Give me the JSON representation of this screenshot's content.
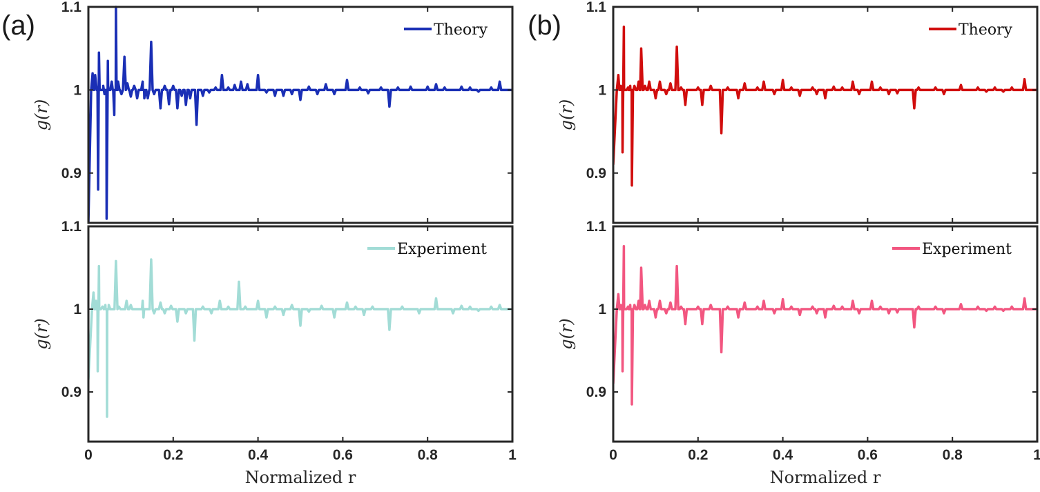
{
  "panel_labels": [
    "(a)",
    "(b)"
  ],
  "chart_data": [
    {
      "type": "line",
      "panel": "(a)",
      "position": "top",
      "legend": "Theory",
      "color": "#1a2fb5",
      "xlim": [
        0,
        1
      ],
      "ylim": [
        0.84,
        1.1
      ],
      "yticks": [
        0.9,
        1.0,
        1.1
      ],
      "ytick_labels": [
        "0.9",
        "1",
        "1.1"
      ],
      "xticks": [
        0,
        0.2,
        0.4,
        0.6,
        0.8,
        1.0
      ],
      "ylabel": "g(r)",
      "xlabel": "",
      "start_value": 0.84,
      "spikes": [
        [
          0.01,
          1.02
        ],
        [
          0.016,
          1.018
        ],
        [
          0.023,
          0.88
        ],
        [
          0.025,
          1.045
        ],
        [
          0.035,
          1.005
        ],
        [
          0.038,
          0.995
        ],
        [
          0.043,
          0.845
        ],
        [
          0.046,
          1.035
        ],
        [
          0.055,
          1.01
        ],
        [
          0.061,
          0.97
        ],
        [
          0.065,
          1.1
        ],
        [
          0.07,
          1.01
        ],
        [
          0.078,
          0.995
        ],
        [
          0.085,
          1.04
        ],
        [
          0.092,
          1.008
        ],
        [
          0.1,
          0.992
        ],
        [
          0.108,
          1.005
        ],
        [
          0.115,
          0.99
        ],
        [
          0.128,
          1.01
        ],
        [
          0.132,
          0.99
        ],
        [
          0.14,
          0.99
        ],
        [
          0.148,
          1.058
        ],
        [
          0.155,
          0.995
        ],
        [
          0.17,
          0.978
        ],
        [
          0.18,
          1.005
        ],
        [
          0.19,
          0.983
        ],
        [
          0.2,
          1.005
        ],
        [
          0.21,
          0.978
        ],
        [
          0.22,
          0.993
        ],
        [
          0.23,
          0.982
        ],
        [
          0.24,
          0.99
        ],
        [
          0.255,
          0.958
        ],
        [
          0.27,
          0.993
        ],
        [
          0.285,
          0.997
        ],
        [
          0.3,
          1.003
        ],
        [
          0.315,
          1.018
        ],
        [
          0.33,
          1.003
        ],
        [
          0.345,
          1.006
        ],
        [
          0.36,
          1.01
        ],
        [
          0.375,
          1.007
        ],
        [
          0.4,
          1.018
        ],
        [
          0.42,
          0.997
        ],
        [
          0.44,
          0.993
        ],
        [
          0.46,
          0.993
        ],
        [
          0.48,
          0.995
        ],
        [
          0.5,
          0.988
        ],
        [
          0.52,
          1.004
        ],
        [
          0.54,
          0.995
        ],
        [
          0.56,
          1.007
        ],
        [
          0.58,
          0.995
        ],
        [
          0.61,
          1.012
        ],
        [
          0.64,
          1.003
        ],
        [
          0.66,
          0.996
        ],
        [
          0.69,
          1.003
        ],
        [
          0.71,
          0.98
        ],
        [
          0.73,
          1.003
        ],
        [
          0.76,
          1.004
        ],
        [
          0.8,
          1.004
        ],
        [
          0.82,
          1.007
        ],
        [
          0.84,
          1.003
        ],
        [
          0.88,
          1.004
        ],
        [
          0.9,
          1.003
        ],
        [
          0.92,
          0.998
        ],
        [
          0.95,
          1.003
        ],
        [
          0.97,
          1.01
        ]
      ]
    },
    {
      "type": "line",
      "panel": "(a)",
      "position": "bottom",
      "legend": "Experiment",
      "color": "#a2dcd6",
      "xlim": [
        0,
        1
      ],
      "ylim": [
        0.84,
        1.1
      ],
      "yticks": [
        0.9,
        1.0,
        1.1
      ],
      "ytick_labels": [
        "0.9",
        "1",
        "1.1"
      ],
      "xticks": [
        0,
        0.2,
        0.4,
        0.6,
        0.8,
        1.0
      ],
      "xtick_labels": [
        "0",
        "0.2",
        "0.4",
        "0.6",
        "0.8",
        "1"
      ],
      "ylabel": "g(r)",
      "xlabel": "Normalized r",
      "start_value": 0.915,
      "spikes": [
        [
          0.012,
          1.02
        ],
        [
          0.018,
          1.01
        ],
        [
          0.022,
          0.925
        ],
        [
          0.025,
          1.052
        ],
        [
          0.033,
          1.003
        ],
        [
          0.04,
          1.005
        ],
        [
          0.044,
          0.87
        ],
        [
          0.048,
          1.005
        ],
        [
          0.058,
          1.0
        ],
        [
          0.065,
          1.058
        ],
        [
          0.072,
          1.003
        ],
        [
          0.09,
          1.01
        ],
        [
          0.1,
          1.005
        ],
        [
          0.11,
          1.0
        ],
        [
          0.128,
          1.01
        ],
        [
          0.13,
          0.99
        ],
        [
          0.148,
          1.06
        ],
        [
          0.155,
          0.995
        ],
        [
          0.17,
          1.008
        ],
        [
          0.18,
          0.995
        ],
        [
          0.195,
          1.004
        ],
        [
          0.21,
          0.985
        ],
        [
          0.23,
          0.995
        ],
        [
          0.25,
          0.962
        ],
        [
          0.27,
          1.003
        ],
        [
          0.29,
          0.995
        ],
        [
          0.31,
          1.01
        ],
        [
          0.33,
          1.003
        ],
        [
          0.355,
          1.033
        ],
        [
          0.37,
          1.003
        ],
        [
          0.4,
          1.01
        ],
        [
          0.42,
          0.99
        ],
        [
          0.44,
          1.003
        ],
        [
          0.46,
          0.993
        ],
        [
          0.48,
          1.005
        ],
        [
          0.5,
          0.98
        ],
        [
          0.52,
          0.997
        ],
        [
          0.55,
          1.004
        ],
        [
          0.58,
          0.99
        ],
        [
          0.61,
          1.008
        ],
        [
          0.63,
          1.003
        ],
        [
          0.65,
          0.993
        ],
        [
          0.67,
          1.003
        ],
        [
          0.71,
          0.975
        ],
        [
          0.74,
          1.003
        ],
        [
          0.78,
          0.995
        ],
        [
          0.82,
          1.013
        ],
        [
          0.86,
          0.995
        ],
        [
          0.88,
          1.004
        ],
        [
          0.9,
          1.003
        ],
        [
          0.92,
          0.998
        ],
        [
          0.95,
          1.003
        ],
        [
          0.97,
          1.005
        ]
      ]
    },
    {
      "type": "line",
      "panel": "(b)",
      "position": "top",
      "legend": "Theory",
      "color": "#d10d0d",
      "xlim": [
        0,
        1
      ],
      "ylim": [
        0.84,
        1.1
      ],
      "yticks": [
        0.9,
        1.0,
        1.1
      ],
      "ytick_labels": [
        "0.9",
        "1",
        "1.1"
      ],
      "xticks": [
        0,
        0.2,
        0.4,
        0.6,
        0.8,
        1.0
      ],
      "ylabel": "g(r)",
      "xlabel": "",
      "start_value": 0.91,
      "spikes": [
        [
          0.012,
          1.018
        ],
        [
          0.018,
          1.005
        ],
        [
          0.022,
          0.925
        ],
        [
          0.025,
          1.076
        ],
        [
          0.035,
          1.003
        ],
        [
          0.04,
          1.005
        ],
        [
          0.044,
          0.885
        ],
        [
          0.05,
          1.005
        ],
        [
          0.06,
          1.01
        ],
        [
          0.066,
          1.05
        ],
        [
          0.075,
          1.005
        ],
        [
          0.085,
          1.01
        ],
        [
          0.1,
          0.99
        ],
        [
          0.11,
          1.01
        ],
        [
          0.125,
          0.995
        ],
        [
          0.135,
          1.008
        ],
        [
          0.15,
          1.052
        ],
        [
          0.16,
          1.003
        ],
        [
          0.17,
          0.982
        ],
        [
          0.2,
          1.003
        ],
        [
          0.21,
          0.982
        ],
        [
          0.23,
          1.005
        ],
        [
          0.255,
          0.948
        ],
        [
          0.27,
          1.003
        ],
        [
          0.295,
          0.99
        ],
        [
          0.31,
          1.008
        ],
        [
          0.34,
          1.003
        ],
        [
          0.355,
          1.01
        ],
        [
          0.38,
          0.995
        ],
        [
          0.4,
          1.012
        ],
        [
          0.42,
          1.003
        ],
        [
          0.44,
          0.993
        ],
        [
          0.47,
          1.003
        ],
        [
          0.48,
          0.995
        ],
        [
          0.5,
          0.99
        ],
        [
          0.52,
          1.004
        ],
        [
          0.54,
          1.003
        ],
        [
          0.565,
          1.01
        ],
        [
          0.58,
          0.995
        ],
        [
          0.61,
          1.01
        ],
        [
          0.63,
          1.003
        ],
        [
          0.65,
          0.995
        ],
        [
          0.67,
          0.996
        ],
        [
          0.71,
          0.978
        ],
        [
          0.72,
          1.003
        ],
        [
          0.76,
          1.003
        ],
        [
          0.78,
          0.995
        ],
        [
          0.82,
          1.006
        ],
        [
          0.86,
          1.003
        ],
        [
          0.88,
          0.998
        ],
        [
          0.9,
          1.003
        ],
        [
          0.92,
          0.998
        ],
        [
          0.94,
          1.003
        ],
        [
          0.97,
          1.013
        ]
      ]
    },
    {
      "type": "line",
      "panel": "(b)",
      "position": "bottom",
      "legend": "Experiment",
      "color": "#f25680",
      "xlim": [
        0,
        1
      ],
      "ylim": [
        0.84,
        1.1
      ],
      "yticks": [
        0.9,
        1.0,
        1.1
      ],
      "ytick_labels": [
        "0.9",
        "1",
        "1.1"
      ],
      "xticks": [
        0,
        0.2,
        0.4,
        0.6,
        0.8,
        1.0
      ],
      "xtick_labels": [
        "0",
        "0.2",
        "0.4",
        "0.6",
        "0.8",
        "1"
      ],
      "ylabel": "g(r)",
      "xlabel": "Normalized r",
      "start_value": 0.91,
      "spikes": [
        [
          0.012,
          1.018
        ],
        [
          0.018,
          1.005
        ],
        [
          0.022,
          0.925
        ],
        [
          0.025,
          1.076
        ],
        [
          0.035,
          1.003
        ],
        [
          0.04,
          1.005
        ],
        [
          0.044,
          0.885
        ],
        [
          0.05,
          1.005
        ],
        [
          0.06,
          1.01
        ],
        [
          0.066,
          1.05
        ],
        [
          0.075,
          1.005
        ],
        [
          0.085,
          1.01
        ],
        [
          0.1,
          0.99
        ],
        [
          0.11,
          1.01
        ],
        [
          0.125,
          0.995
        ],
        [
          0.135,
          1.008
        ],
        [
          0.15,
          1.052
        ],
        [
          0.16,
          1.003
        ],
        [
          0.17,
          0.982
        ],
        [
          0.2,
          1.003
        ],
        [
          0.21,
          0.982
        ],
        [
          0.23,
          1.005
        ],
        [
          0.255,
          0.948
        ],
        [
          0.27,
          1.003
        ],
        [
          0.295,
          0.99
        ],
        [
          0.31,
          1.008
        ],
        [
          0.34,
          1.003
        ],
        [
          0.355,
          1.01
        ],
        [
          0.38,
          0.995
        ],
        [
          0.4,
          1.012
        ],
        [
          0.42,
          1.003
        ],
        [
          0.44,
          0.993
        ],
        [
          0.47,
          1.003
        ],
        [
          0.48,
          0.995
        ],
        [
          0.5,
          0.99
        ],
        [
          0.52,
          1.004
        ],
        [
          0.54,
          1.003
        ],
        [
          0.565,
          1.01
        ],
        [
          0.58,
          0.995
        ],
        [
          0.61,
          1.01
        ],
        [
          0.63,
          1.003
        ],
        [
          0.65,
          0.995
        ],
        [
          0.67,
          0.996
        ],
        [
          0.71,
          0.978
        ],
        [
          0.72,
          1.003
        ],
        [
          0.76,
          1.003
        ],
        [
          0.78,
          0.995
        ],
        [
          0.82,
          1.006
        ],
        [
          0.86,
          1.003
        ],
        [
          0.88,
          0.998
        ],
        [
          0.9,
          1.003
        ],
        [
          0.92,
          0.998
        ],
        [
          0.94,
          1.003
        ],
        [
          0.97,
          1.013
        ]
      ]
    }
  ]
}
